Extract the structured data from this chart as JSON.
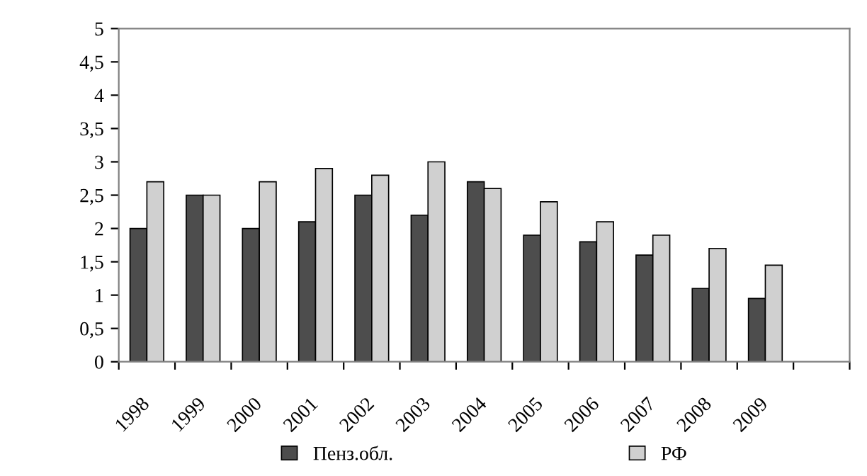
{
  "chart_data": {
    "type": "bar",
    "categories": [
      "1998",
      "1999",
      "2000",
      "2001",
      "2002",
      "2003",
      "2004",
      "2005",
      "2006",
      "2007",
      "2008",
      "2009",
      null
    ],
    "series": [
      {
        "name": "Пенз.обл.",
        "color": "#4d4d4d",
        "values": [
          2.0,
          2.5,
          2.0,
          2.1,
          2.5,
          2.2,
          2.7,
          1.9,
          1.8,
          1.6,
          1.1,
          0.95,
          null
        ]
      },
      {
        "name": "РФ",
        "color": "#d0d0d0",
        "values": [
          2.7,
          2.5,
          2.7,
          2.9,
          2.8,
          3.0,
          2.6,
          2.4,
          2.1,
          1.9,
          1.7,
          1.45,
          null
        ]
      }
    ],
    "ylim": [
      0,
      5
    ],
    "yticks": [
      0,
      {
        "value": 0.5,
        "label": "0,5"
      },
      1,
      {
        "value": 1.5,
        "label": "1,5"
      },
      2,
      {
        "value": 2.5,
        "label": "2,5"
      },
      3,
      {
        "value": 3.5,
        "label": "3,5"
      },
      4,
      {
        "value": 4.5,
        "label": "4,5"
      },
      5
    ],
    "grid": false,
    "legend": "bottom"
  }
}
